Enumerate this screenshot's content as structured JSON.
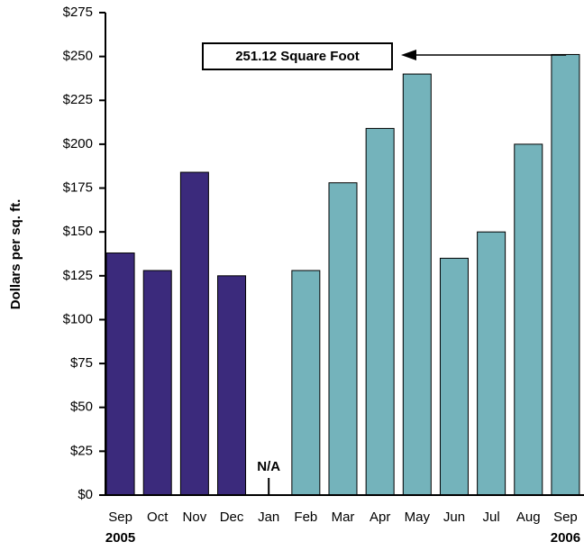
{
  "chart_data": {
    "type": "bar",
    "y_label": "Dollars per sq. ft.",
    "categories": [
      "Sep",
      "Oct",
      "Nov",
      "Dec",
      "Jan",
      "Feb",
      "Mar",
      "Apr",
      "May",
      "Jun",
      "Jul",
      "Aug",
      "Sep"
    ],
    "years": [
      "2005",
      "2006"
    ],
    "values": [
      138,
      128,
      184,
      125,
      null,
      128,
      178,
      209,
      240,
      135,
      150,
      200,
      251.12
    ],
    "colors": [
      "#3b2a7c",
      "#3b2a7c",
      "#3b2a7c",
      "#3b2a7c",
      "#3b2a7c",
      "#74b3bb",
      "#74b3bb",
      "#74b3bb",
      "#74b3bb",
      "#74b3bb",
      "#74b3bb",
      "#74b3bb",
      "#74b3bb"
    ],
    "annotation": "251.12 Square Foot",
    "missing_label": "N/A",
    "ylim": [
      0,
      275
    ],
    "yticks": [
      {
        "value": 0,
        "label": "$0"
      },
      {
        "value": 25,
        "label": "$25"
      },
      {
        "value": 50,
        "label": "$50"
      },
      {
        "value": 75,
        "label": "$75"
      },
      {
        "value": 100,
        "label": "$100"
      },
      {
        "value": 125,
        "label": "$125"
      },
      {
        "value": 150,
        "label": "$150"
      },
      {
        "value": 175,
        "label": "$175"
      },
      {
        "value": 200,
        "label": "$200"
      },
      {
        "value": 225,
        "label": "$225"
      },
      {
        "value": 250,
        "label": "$250"
      },
      {
        "value": 275,
        "label": "$275"
      }
    ]
  }
}
